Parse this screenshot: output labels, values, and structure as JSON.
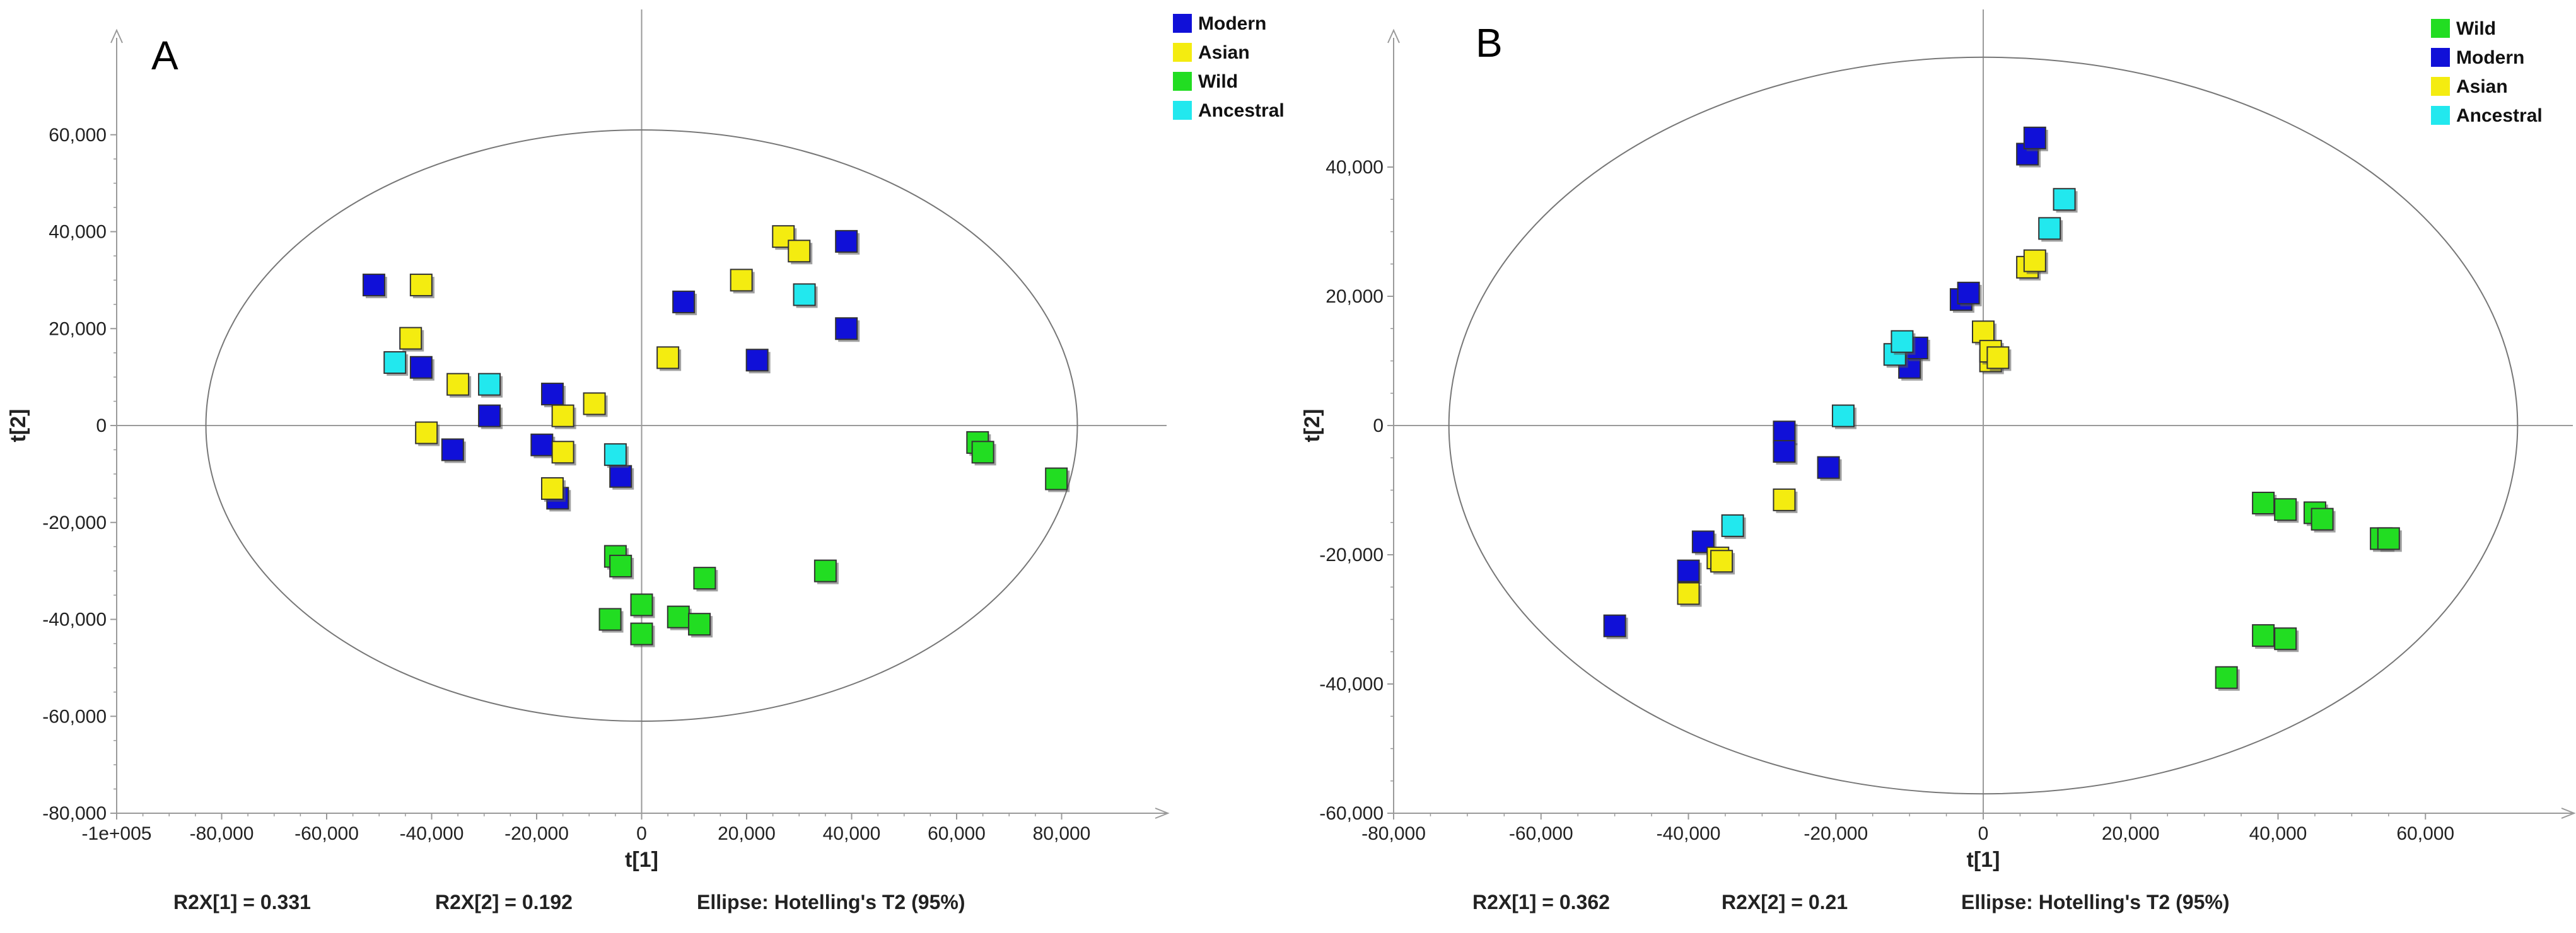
{
  "figure": {
    "background": "#ffffff"
  },
  "colors": {
    "Modern": "#1010d8",
    "Asian": "#f4ec10",
    "Wild": "#22dd22",
    "Ancestral": "#22e8ee",
    "axis": "#9a9a9a",
    "ellipse": "#777777",
    "marker_edge": "#333333"
  },
  "chart_data": [
    {
      "type": "scatter",
      "panel_label": "A",
      "xlabel": "t[1]",
      "ylabel": "t[2]",
      "xlim": [
        -100000,
        100000
      ],
      "ylim": [
        -80000,
        80000
      ],
      "xticks": [
        -100000,
        -80000,
        -60000,
        -40000,
        -20000,
        0,
        20000,
        40000,
        60000,
        80000
      ],
      "xtick_labels": [
        "-1e+005",
        "-80,000",
        "-60,000",
        "-40,000",
        "-20,000",
        "0",
        "20,000",
        "40,000",
        "60,000",
        "80,000"
      ],
      "yticks": [
        -80000,
        -60000,
        -40000,
        -20000,
        0,
        20000,
        40000,
        60000
      ],
      "ytick_labels": [
        "-80,000",
        "-60,000",
        "-40,000",
        "-20,000",
        "0",
        "20,000",
        "40,000",
        "60,000"
      ],
      "ellipse": {
        "cx": 0,
        "cy": 0,
        "rx": 83000,
        "ry": 61000
      },
      "legend_position": "top-right",
      "legend": [
        "Modern",
        "Asian",
        "Wild",
        "Ancestral"
      ],
      "legend_labels": [
        "Modern",
        "Asian",
        "Wild",
        "Ancestral"
      ],
      "footer": {
        "r2x1": "R2X[1] = 0.331",
        "r2x2": "R2X[2] = 0.192",
        "ellipse_label": "Ellipse: Hotelling's T2 (95%)"
      },
      "series": [
        {
          "name": "Modern",
          "points": [
            [
              -51000,
              29000
            ],
            [
              -42000,
              12000
            ],
            [
              -36000,
              -5000
            ],
            [
              -29000,
              2000
            ],
            [
              -19000,
              -4000
            ],
            [
              -17000,
              6500
            ],
            [
              -16000,
              -15000
            ],
            [
              -4000,
              -10500
            ],
            [
              8000,
              25500
            ],
            [
              22000,
              13500
            ],
            [
              39000,
              38000
            ],
            [
              39000,
              20000
            ]
          ]
        },
        {
          "name": "Asian",
          "points": [
            [
              -42000,
              29000
            ],
            [
              -44000,
              18000
            ],
            [
              -41000,
              -1500
            ],
            [
              -35000,
              8500
            ],
            [
              -15000,
              2000
            ],
            [
              -15000,
              -5500
            ],
            [
              -17000,
              -13000
            ],
            [
              -9000,
              4500
            ],
            [
              5000,
              14000
            ],
            [
              19000,
              30000
            ],
            [
              27000,
              39000
            ],
            [
              30000,
              36000
            ]
          ]
        },
        {
          "name": "Wild",
          "points": [
            [
              -5000,
              -27000
            ],
            [
              -4000,
              -29000
            ],
            [
              -6000,
              -40000
            ],
            [
              0,
              -37000
            ],
            [
              0,
              -43000
            ],
            [
              7000,
              -39500
            ],
            [
              11000,
              -41000
            ],
            [
              12000,
              -31500
            ],
            [
              35000,
              -30000
            ],
            [
              64000,
              -3500
            ],
            [
              65000,
              -5500
            ],
            [
              79000,
              -11000
            ]
          ]
        },
        {
          "name": "Ancestral",
          "points": [
            [
              -47000,
              13000
            ],
            [
              -29000,
              8500
            ],
            [
              -5000,
              -6000
            ],
            [
              31000,
              27000
            ]
          ]
        }
      ]
    },
    {
      "type": "scatter",
      "panel_label": "B",
      "xlabel": "t[1]",
      "ylabel": "t[2]",
      "xlim": [
        -80000,
        80000
      ],
      "ylim": [
        -60000,
        60000
      ],
      "xticks": [
        -80000,
        -60000,
        -40000,
        -20000,
        0,
        20000,
        40000,
        60000
      ],
      "xtick_labels": [
        "-80,000",
        "-60,000",
        "-40,000",
        "-20,000",
        "0",
        "20,000",
        "40,000",
        "60,000"
      ],
      "yticks": [
        -60000,
        -40000,
        -20000,
        0,
        20000,
        40000
      ],
      "ytick_labels": [
        "-60,000",
        "-40,000",
        "-20,000",
        "0",
        "20,000",
        "40,000"
      ],
      "ellipse": {
        "cx": 0,
        "cy": 0,
        "rx": 72500,
        "ry": 57000
      },
      "legend_position": "top-right",
      "legend": [
        "Wild",
        "Modern",
        "Asian",
        "Ancestral"
      ],
      "legend_labels": [
        "Wild",
        "Modern",
        "Asian",
        "Ancestral"
      ],
      "footer": {
        "r2x1": "R2X[1] = 0.362",
        "r2x2": "R2X[2] = 0.21",
        "ellipse_label": "Ellipse: Hotelling's T2 (95%)"
      },
      "series": [
        {
          "name": "Wild",
          "points": [
            [
              33000,
              -39000
            ],
            [
              38000,
              -12000
            ],
            [
              38000,
              -32500
            ],
            [
              41000,
              -13000
            ],
            [
              41000,
              -33000
            ],
            [
              45000,
              -13500
            ],
            [
              46000,
              -14500
            ],
            [
              54000,
              -17500
            ],
            [
              55000,
              -17500
            ]
          ]
        },
        {
          "name": "Modern",
          "points": [
            [
              -50000,
              -31000
            ],
            [
              -40000,
              -22500
            ],
            [
              -38000,
              -18000
            ],
            [
              -27000,
              -1000
            ],
            [
              -27000,
              -4000
            ],
            [
              -21000,
              -6500
            ],
            [
              -10000,
              9000
            ],
            [
              -9000,
              12000
            ],
            [
              -3000,
              19500
            ],
            [
              -2000,
              20500
            ],
            [
              6000,
              42000
            ],
            [
              7000,
              44500
            ]
          ]
        },
        {
          "name": "Asian",
          "points": [
            [
              -40000,
              -26000
            ],
            [
              -36000,
              -20500
            ],
            [
              -35500,
              -21000
            ],
            [
              -27000,
              -11500
            ],
            [
              0,
              14500
            ],
            [
              1000,
              10000
            ],
            [
              1000,
              11500
            ],
            [
              2000,
              10500
            ],
            [
              6000,
              24500
            ],
            [
              7000,
              25500
            ]
          ]
        },
        {
          "name": "Ancestral",
          "points": [
            [
              -34000,
              -15500
            ],
            [
              -19000,
              1500
            ],
            [
              -12000,
              11000
            ],
            [
              -11000,
              13000
            ],
            [
              9000,
              30500
            ],
            [
              11000,
              35000
            ]
          ]
        }
      ]
    }
  ]
}
